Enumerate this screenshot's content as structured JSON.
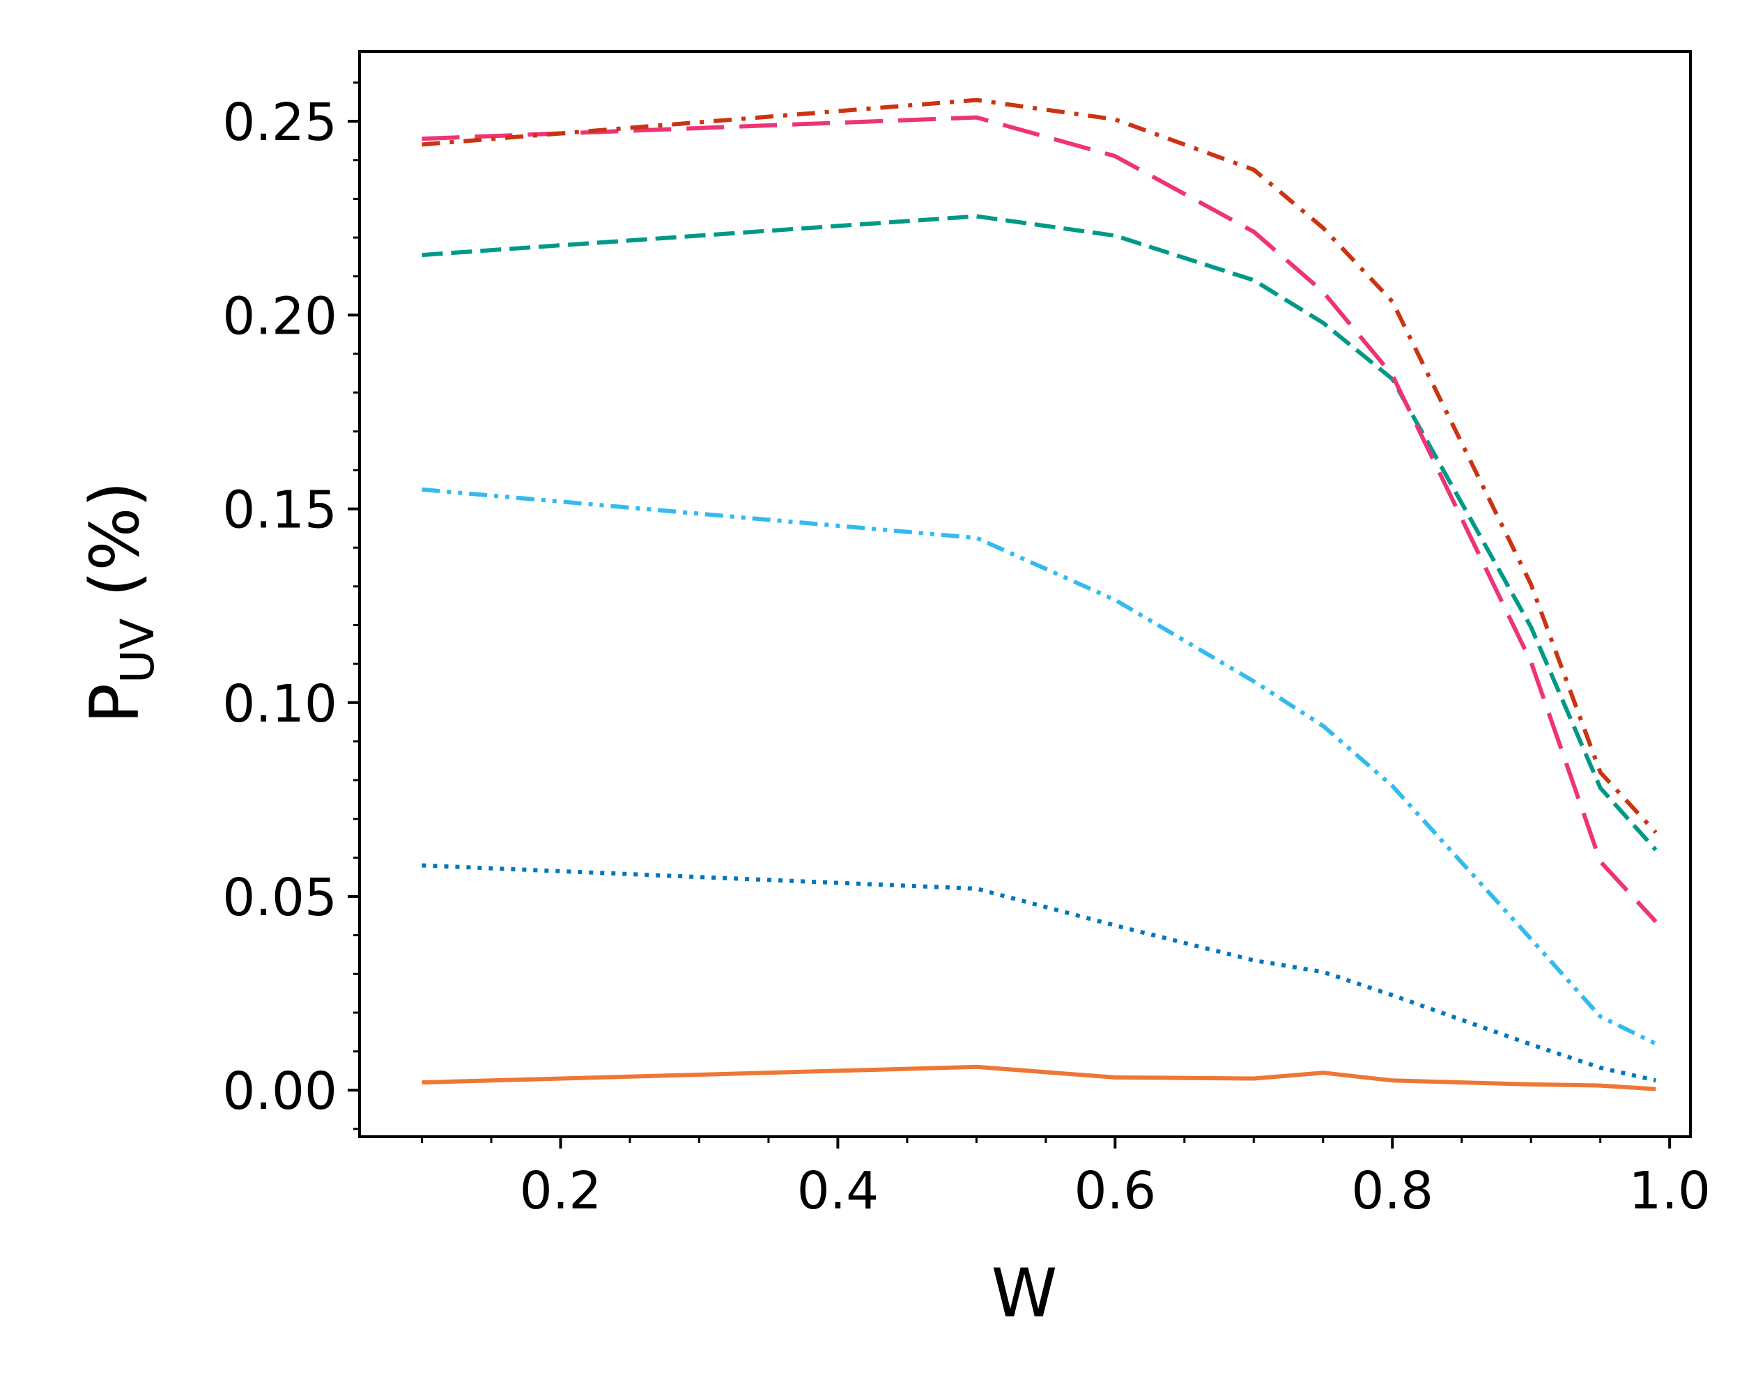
{
  "chart_data": {
    "type": "line",
    "title": "",
    "xlabel": "W",
    "ylabel": {
      "main": "P",
      "sub": "UV",
      "suffix": " (%)"
    },
    "xlim": [
      0.055,
      1.015
    ],
    "ylim": [
      -0.012,
      0.268
    ],
    "grid": false,
    "legend": "none",
    "x_ticks": [
      0.2,
      0.4,
      0.6,
      0.8,
      1.0
    ],
    "x_tick_labels": [
      "0.2",
      "0.4",
      "0.6",
      "0.8",
      "1.0"
    ],
    "y_ticks": [
      0.0,
      0.05,
      0.1,
      0.15,
      0.2,
      0.25
    ],
    "y_tick_labels": [
      "0.00",
      "0.05",
      "0.10",
      "0.15",
      "0.20",
      "0.25"
    ],
    "x_minor_step": 0.05,
    "y_minor_step": 0.01,
    "x": [
      0.1,
      0.5,
      0.6,
      0.7,
      0.75,
      0.8,
      0.9,
      0.95,
      0.99
    ],
    "series": [
      {
        "name": "solid-orange",
        "color": "#ee7733",
        "dash": "solid",
        "values": [
          0.002,
          0.006,
          0.0033,
          0.003,
          0.0045,
          0.0025,
          0.0015,
          0.0012,
          0.0003
        ]
      },
      {
        "name": "dotted-blue",
        "color": "#0077bb",
        "dash": "dotted",
        "values": [
          0.058,
          0.052,
          0.0425,
          0.0335,
          0.0305,
          0.0245,
          0.0118,
          0.0058,
          0.0025
        ]
      },
      {
        "name": "dash-dot-dot-cyan",
        "color": "#33bbee",
        "dash": "dashdotdot",
        "values": [
          0.155,
          0.1425,
          0.1265,
          0.1055,
          0.094,
          0.0785,
          0.039,
          0.019,
          0.012
        ]
      },
      {
        "name": "dashed-teal",
        "color": "#009988",
        "dash": "dashed",
        "values": [
          0.2155,
          0.2255,
          0.2205,
          0.209,
          0.198,
          0.1835,
          0.1195,
          0.078,
          0.062
        ]
      },
      {
        "name": "long-dash-magenta",
        "color": "#ee3377",
        "dash": "longdash",
        "values": [
          0.2455,
          0.251,
          0.241,
          0.2215,
          0.206,
          0.1845,
          0.1105,
          0.059,
          0.0435
        ]
      },
      {
        "name": "dash-dot-red",
        "color": "#cc3311",
        "dash": "dashdot",
        "values": [
          0.244,
          0.2555,
          0.2505,
          0.2375,
          0.2225,
          0.2035,
          0.1305,
          0.082,
          0.0665
        ]
      }
    ]
  }
}
